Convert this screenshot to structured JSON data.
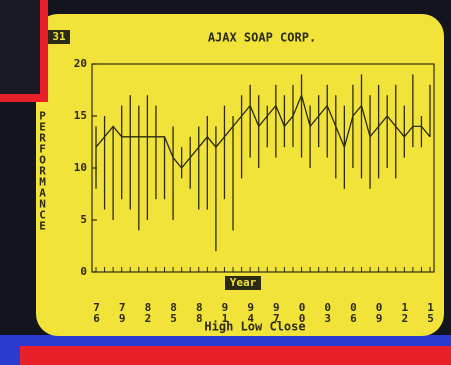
{
  "label": "31",
  "chart_data": {
    "type": "hlc",
    "title": "AJAX SOAP CORP.",
    "y_label": "PERFORMANCE",
    "x_label": "Year",
    "subtitle": "High Low Close",
    "categories": [
      "76",
      null,
      null,
      "79",
      null,
      null,
      "82",
      null,
      null,
      "85",
      null,
      null,
      "88",
      null,
      null,
      "91",
      null,
      null,
      "94",
      null,
      null,
      "97",
      null,
      null,
      "00",
      null,
      null,
      "03",
      null,
      null,
      "06",
      null,
      null,
      "09",
      null,
      null,
      "12",
      null,
      null,
      "15"
    ],
    "high": [
      14,
      15,
      14,
      16,
      17,
      16,
      17,
      16,
      13,
      14,
      12,
      13,
      14,
      15,
      14,
      16,
      15,
      17,
      18,
      17,
      16,
      18,
      17,
      18,
      19,
      16,
      17,
      18,
      17,
      16,
      18,
      19,
      17,
      18,
      17,
      18,
      16,
      19,
      15,
      18
    ],
    "low": [
      8,
      6,
      5,
      7,
      6,
      4,
      5,
      7,
      7,
      5,
      9,
      8,
      6,
      6,
      2,
      7,
      4,
      9,
      11,
      10,
      12,
      11,
      12,
      12,
      11,
      10,
      12,
      11,
      9,
      8,
      10,
      9,
      8,
      9,
      10,
      9,
      11,
      12,
      12,
      13
    ],
    "close": [
      12,
      13,
      14,
      13,
      13,
      13,
      13,
      13,
      13,
      11,
      10,
      11,
      12,
      13,
      12,
      13,
      14,
      15,
      16,
      14,
      15,
      16,
      14,
      15,
      17,
      14,
      15,
      16,
      14,
      12,
      15,
      16,
      13,
      14,
      15,
      14,
      13,
      14,
      14,
      13
    ],
    "color": "#2b2a14",
    "ylim": [
      0,
      20
    ],
    "yticks": [
      0,
      5,
      10,
      15,
      20
    ]
  }
}
